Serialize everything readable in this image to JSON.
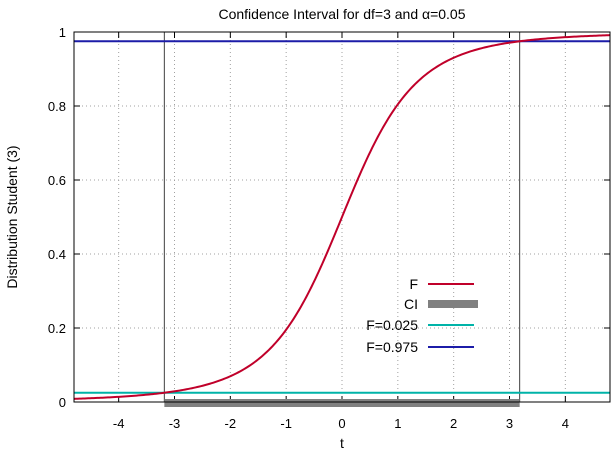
{
  "chart_data": {
    "type": "line",
    "title": "Confidence Interval for df=3 and α=0.05",
    "xlabel": "t",
    "ylabel": "Distribution Student (3)",
    "xlim": [
      -4.8,
      4.8
    ],
    "ylim": [
      0,
      1
    ],
    "grid": true,
    "legend_position": "bottom-right",
    "x_ticks": [
      -4,
      -3,
      -2,
      -1,
      0,
      1,
      2,
      3,
      4
    ],
    "x_tick_labels": [
      "-4",
      "-3",
      "-2",
      "-1",
      "0",
      "1",
      "2",
      "3",
      "4"
    ],
    "y_ticks": [
      0,
      0.2,
      0.4,
      0.6,
      0.8,
      1
    ],
    "y_tick_labels": [
      "0",
      "0.2",
      "0.4",
      "0.6",
      "0.8",
      "1"
    ],
    "series": [
      {
        "name": "F",
        "color": "#c0002a",
        "kind": "cdf",
        "df": 3,
        "x": [
          -4.8,
          -4.5,
          -4.0,
          -3.5,
          -3.182,
          -3.0,
          -2.5,
          -2.0,
          -1.5,
          -1.0,
          -0.5,
          0.0,
          0.5,
          1.0,
          1.5,
          2.0,
          2.5,
          3.0,
          3.182,
          3.5,
          4.0,
          4.5,
          4.8
        ],
        "y": [
          0.0086,
          0.0102,
          0.014,
          0.0197,
          0.025,
          0.0288,
          0.0439,
          0.0697,
          0.1152,
          0.1955,
          0.3257,
          0.5,
          0.6743,
          0.8045,
          0.8848,
          0.9303,
          0.9561,
          0.9712,
          0.975,
          0.9803,
          0.986,
          0.9898,
          0.9914
        ]
      },
      {
        "name": "CI",
        "color": "#808080",
        "kind": "interval",
        "x": [
          -3.182,
          3.182
        ],
        "y": [
          0,
          0
        ]
      },
      {
        "name": "F=0.025",
        "color": "#00b3a8",
        "kind": "hline",
        "y": 0.025
      },
      {
        "name": "F=0.975",
        "color": "#1c1ca8",
        "kind": "hline",
        "y": 0.975
      }
    ],
    "vlines": [
      -3.182,
      3.182
    ],
    "vline_color": "#404040"
  }
}
